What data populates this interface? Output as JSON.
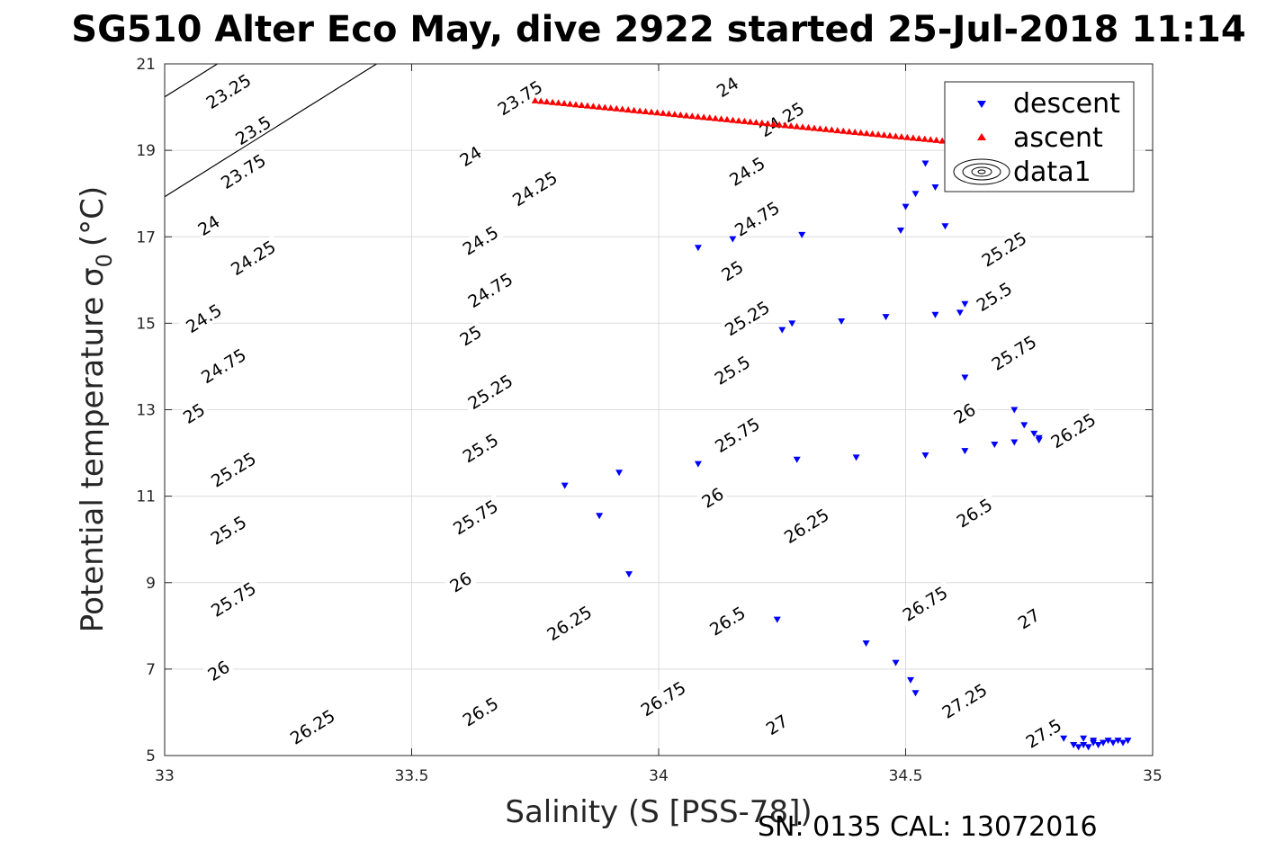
{
  "chart_data": {
    "type": "scatter",
    "title": "SG510 Alter Eco May, dive 2922 started 25-Jul-2018 11:14",
    "xlabel": "Salinity (S [PSS-78])",
    "ylabel": "Potential temperature σ",
    "ylabel_subscript": "0",
    "ylabel_unit": "(°C)",
    "footer": "SN: 0135  CAL: 13072016",
    "xlim": [
      33,
      35
    ],
    "ylim": [
      5,
      21
    ],
    "xticks": [
      33,
      33.5,
      34,
      34.5,
      35
    ],
    "yticks": [
      5,
      7,
      9,
      11,
      13,
      15,
      17,
      19,
      21
    ],
    "xtick_labels": [
      "33",
      "33.5",
      "34",
      "34.5",
      "35"
    ],
    "ytick_labels": [
      "5",
      "7",
      "9",
      "11",
      "13",
      "15",
      "17",
      "19",
      "21"
    ],
    "grid": true,
    "legend_position": "top-right",
    "legend": [
      "descent",
      "ascent",
      "data1"
    ],
    "series": [
      {
        "name": "descent",
        "color": "#0000ff",
        "marker": "triangle-down",
        "x": [
          34.54,
          34.56,
          34.52,
          34.5,
          34.49,
          34.58,
          34.08,
          34.15,
          34.29,
          34.62,
          34.61,
          34.56,
          34.46,
          34.37,
          34.27,
          34.25,
          34.62,
          34.72,
          34.74,
          34.76,
          34.77,
          34.77,
          34.72,
          34.68,
          34.62,
          34.54,
          34.4,
          34.28,
          34.08,
          33.92,
          33.81,
          33.88,
          33.94,
          34.24,
          34.42,
          34.48,
          34.51,
          34.52,
          34.82,
          34.84,
          34.85,
          34.86,
          34.87,
          34.88,
          34.89,
          34.9,
          34.91,
          34.92,
          34.93,
          34.94,
          34.95,
          34.86,
          34.88,
          34.9
        ],
        "y": [
          18.7,
          18.15,
          18.0,
          17.7,
          17.15,
          17.25,
          16.75,
          16.95,
          17.05,
          15.45,
          15.25,
          15.2,
          15.15,
          15.05,
          15.0,
          14.85,
          13.75,
          13.0,
          12.65,
          12.45,
          12.35,
          12.3,
          12.25,
          12.2,
          12.05,
          11.95,
          11.9,
          11.85,
          11.75,
          11.55,
          11.25,
          10.55,
          9.2,
          8.15,
          7.6,
          7.15,
          6.75,
          6.45,
          5.4,
          5.25,
          5.2,
          5.25,
          5.2,
          5.3,
          5.25,
          5.3,
          5.35,
          5.3,
          5.35,
          5.3,
          5.35,
          5.4,
          5.35,
          5.3
        ]
      },
      {
        "name": "ascent",
        "color": "#ff0000",
        "marker": "triangle-up",
        "x_start": 33.75,
        "y_start": 20.15,
        "x_end": 34.68,
        "y_end": 19.1,
        "count": 80
      },
      {
        "name": "data1",
        "color": "#000000",
        "type": "contour",
        "levels": [
          "23.25",
          "23.5",
          "23.75",
          "24",
          "24.25",
          "24.5",
          "24.75",
          "25",
          "25.25",
          "25.5",
          "25.75",
          "26",
          "26.25",
          "26.5",
          "26.75",
          "27",
          "27.25",
          "27.5"
        ]
      }
    ]
  }
}
